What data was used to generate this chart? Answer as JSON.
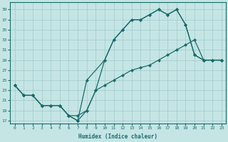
{
  "bg_color": "#c5e5e5",
  "grid_color": "#a0c8c8",
  "line_color": "#1a6b6b",
  "xlabel": "Humidex (Indice chaleur)",
  "xlim": [
    -0.5,
    23.5
  ],
  "ylim": [
    16.5,
    40.5
  ],
  "yticks": [
    17,
    19,
    21,
    23,
    25,
    27,
    29,
    31,
    33,
    35,
    37,
    39
  ],
  "xticks": [
    0,
    1,
    2,
    3,
    4,
    5,
    6,
    7,
    8,
    9,
    10,
    11,
    12,
    13,
    14,
    15,
    16,
    17,
    18,
    19,
    20,
    21,
    22,
    23
  ],
  "line1_x": [
    0,
    1,
    2,
    3,
    4,
    5,
    6,
    7,
    8,
    10,
    11,
    12,
    13,
    14,
    15,
    16,
    17,
    18,
    19,
    20,
    21,
    22,
    23
  ],
  "line1_y": [
    24,
    22,
    22,
    20,
    20,
    20,
    18,
    17,
    25,
    29,
    33,
    35,
    37,
    37,
    38,
    39,
    38,
    39,
    36,
    30,
    29,
    29,
    29
  ],
  "line2_x": [
    0,
    1,
    2,
    3,
    4,
    5,
    6,
    7,
    8,
    9,
    10,
    11,
    12,
    13,
    14,
    15,
    16,
    17,
    18,
    19,
    20,
    21,
    22,
    23
  ],
  "line2_y": [
    24,
    22,
    22,
    20,
    20,
    20,
    18,
    17,
    19,
    23,
    29,
    33,
    35,
    37,
    37,
    38,
    39,
    38,
    39,
    36,
    30,
    29,
    29,
    29
  ],
  "line3_x": [
    0,
    1,
    2,
    3,
    4,
    5,
    6,
    7,
    8,
    9,
    10,
    11,
    12,
    13,
    14,
    15,
    16,
    17,
    18,
    19,
    20,
    21,
    22,
    23
  ],
  "line3_y": [
    24,
    22,
    22,
    20,
    20,
    20,
    18,
    18,
    19,
    23,
    24,
    25,
    26,
    27,
    27.5,
    28,
    29,
    30,
    31,
    32,
    33,
    29,
    29,
    29
  ]
}
